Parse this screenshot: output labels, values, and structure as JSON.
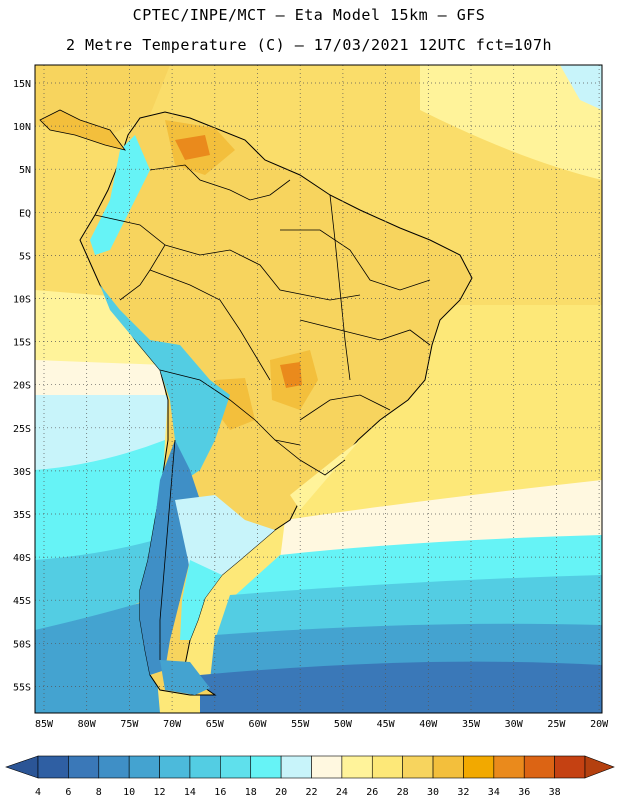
{
  "header": {
    "line1": "CPTEC/INPE/MCT –  Eta Model 15km – GFS",
    "line2": "2 Metre Temperature (C) – 17/03/2021 12UTC fct=107h"
  },
  "map": {
    "lat_ticks": [
      "15N",
      "10N",
      "5N",
      "EQ",
      "5S",
      "10S",
      "15S",
      "20S",
      "25S",
      "30S",
      "35S",
      "40S",
      "45S",
      "50S",
      "55S"
    ],
    "lon_ticks": [
      "85W",
      "80W",
      "75W",
      "70W",
      "65W",
      "60W",
      "55W",
      "50W",
      "45W",
      "40W",
      "35W",
      "30W",
      "25W",
      "20W"
    ]
  },
  "colorbar": {
    "labels": [
      "4",
      "6",
      "8",
      "10",
      "12",
      "14",
      "16",
      "18",
      "20",
      "22",
      "24",
      "26",
      "28",
      "30",
      "32",
      "34",
      "36",
      "38"
    ],
    "colors": [
      "#2f5fa3",
      "#3a78b8",
      "#3f8fc6",
      "#44a3d0",
      "#4cbadb",
      "#53cde3",
      "#5fe0ec",
      "#66f3f6",
      "#c8f4fa",
      "#fff8e0",
      "#fff39a",
      "#fde878",
      "#f7d45e",
      "#f3bf3c",
      "#f2a900",
      "#ea8a1c",
      "#dc6414",
      "#c54112"
    ],
    "low_color": "#2b5596",
    "high_color": "#b4400f"
  }
}
